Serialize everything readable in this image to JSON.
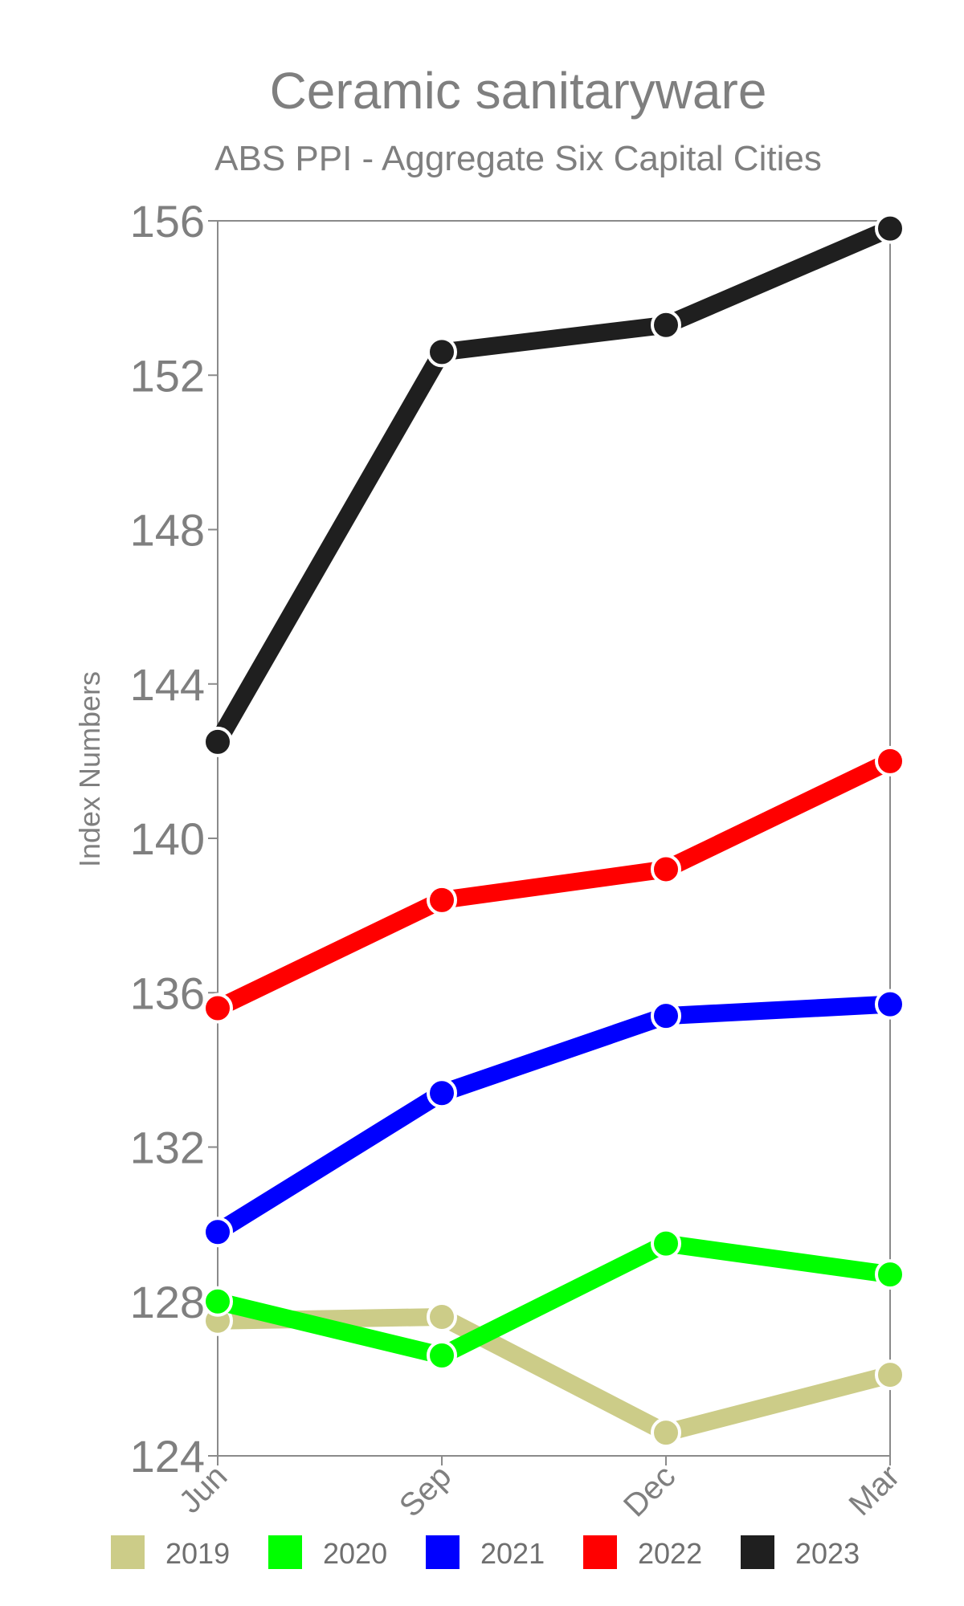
{
  "chart_data": {
    "type": "line",
    "title": "Ceramic sanitaryware",
    "subtitle": "ABS PPI - Aggregate Six Capital Cities",
    "ylabel": "Index Numbers",
    "xlabel": "",
    "categories": [
      "Jun",
      "Sep",
      "Dec",
      "Mar"
    ],
    "ylim": [
      124,
      156
    ],
    "yticks": [
      "124",
      "128",
      "132",
      "136",
      "140",
      "144",
      "148",
      "152",
      "156"
    ],
    "grid": false,
    "legend_position": "bottom",
    "series": [
      {
        "name": "2019",
        "color": "#cccc88",
        "values": [
          127.5,
          127.6,
          124.6,
          126.1
        ]
      },
      {
        "name": "2020",
        "color": "#00ff00",
        "values": [
          128.0,
          126.6,
          129.5,
          128.7
        ]
      },
      {
        "name": "2021",
        "color": "#0000ff",
        "values": [
          129.8,
          133.4,
          135.4,
          135.7
        ]
      },
      {
        "name": "2022",
        "color": "#ff0000",
        "values": [
          135.6,
          138.4,
          139.2,
          142.0
        ]
      },
      {
        "name": "2023",
        "color": "#1f1f1f",
        "values": [
          142.5,
          152.6,
          153.3,
          155.8
        ]
      }
    ]
  }
}
